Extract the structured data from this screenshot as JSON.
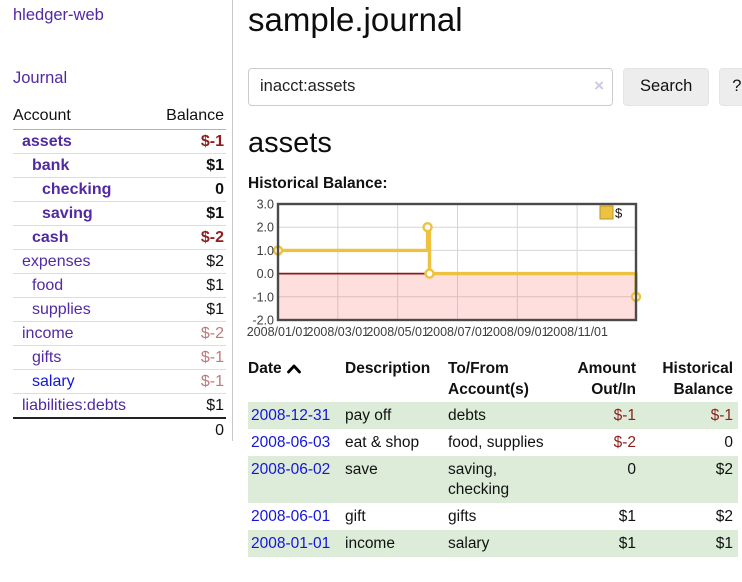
{
  "sidebar": {
    "brand": "hledger-web",
    "nav": {
      "journal": "Journal"
    },
    "accounts_table": {
      "headers": {
        "account": "Account",
        "balance": "Balance"
      },
      "rows": [
        {
          "name": "assets",
          "indent": 1,
          "bold": true,
          "link_style": "purple",
          "balance": "$-1",
          "balance_style": "neg-strong"
        },
        {
          "name": "bank",
          "indent": 2,
          "bold": true,
          "link_style": "purple",
          "balance": "$1",
          "balance_style": "plain"
        },
        {
          "name": "checking",
          "indent": 3,
          "bold": true,
          "link_style": "purple",
          "balance": "0",
          "balance_style": "plain"
        },
        {
          "name": "saving",
          "indent": 3,
          "bold": true,
          "link_style": "purple",
          "balance": "$1",
          "balance_style": "plain"
        },
        {
          "name": "cash",
          "indent": 2,
          "bold": true,
          "link_style": "purple",
          "balance": "$-2",
          "balance_style": "neg-strong"
        },
        {
          "name": "expenses",
          "indent": 1,
          "bold": false,
          "link_style": "purple",
          "balance": "$2",
          "balance_style": "plain"
        },
        {
          "name": "food",
          "indent": 2,
          "bold": false,
          "link_style": "purple",
          "balance": "$1",
          "balance_style": "plain"
        },
        {
          "name": "supplies",
          "indent": 2,
          "bold": false,
          "link_style": "purple",
          "balance": "$1",
          "balance_style": "plain"
        },
        {
          "name": "income",
          "indent": 1,
          "bold": false,
          "link_style": "purple",
          "balance": "$-2",
          "balance_style": "neg-soft"
        },
        {
          "name": "gifts",
          "indent": 2,
          "bold": false,
          "link_style": "purple",
          "balance": "$-1",
          "balance_style": "neg-soft"
        },
        {
          "name": "salary",
          "indent": 2,
          "bold": false,
          "link_style": "blue",
          "balance": "$-1",
          "balance_style": "neg-soft"
        },
        {
          "name": "liabilities:debts",
          "indent": 1,
          "bold": false,
          "link_style": "purple",
          "balance": "$1",
          "balance_style": "plain"
        }
      ],
      "total": "0"
    }
  },
  "main": {
    "title": "sample.journal",
    "search": {
      "value": "inacct:assets",
      "clear_icon": "×",
      "search_button": "Search",
      "help_button": "?"
    },
    "account_heading": "assets",
    "chart_label": "Historical Balance:",
    "register": {
      "headers": {
        "date": "Date",
        "description": "Description",
        "tofrom": "To/From\nAccount(s)",
        "amount": "Amount\nOut/In",
        "balance": "Historical\nBalance"
      },
      "rows": [
        {
          "date": "2008-12-31",
          "description": "pay off",
          "accounts": "debts",
          "amount": "$-1",
          "amount_negative": true,
          "balance": "$-1",
          "balance_negative": true
        },
        {
          "date": "2008-06-03",
          "description": "eat & shop",
          "accounts": "food, supplies",
          "amount": "$-2",
          "amount_negative": true,
          "balance": "0",
          "balance_negative": false
        },
        {
          "date": "2008-06-02",
          "description": "save",
          "accounts": "saving,\nchecking",
          "amount": "0",
          "amount_negative": false,
          "balance": "$2",
          "balance_negative": false
        },
        {
          "date": "2008-06-01",
          "description": "gift",
          "accounts": "gifts",
          "amount": "$1",
          "amount_negative": false,
          "balance": "$2",
          "balance_negative": false
        },
        {
          "date": "2008-01-01",
          "description": "income",
          "accounts": "salary",
          "amount": "$1",
          "amount_negative": false,
          "balance": "$1",
          "balance_negative": false
        }
      ]
    }
  },
  "chart_data": {
    "type": "line",
    "title": "Historical Balance:",
    "step": true,
    "series": [
      {
        "name": "$",
        "color": "#EDC240",
        "points": [
          [
            "2008-01-01",
            1
          ],
          [
            "2008-06-01",
            2
          ],
          [
            "2008-06-03",
            0
          ],
          [
            "2008-12-31",
            -1
          ]
        ]
      }
    ],
    "xrange": [
      "2008-01-01",
      "2008-12-31"
    ],
    "xticks": [
      "2008/01/01",
      "2008/03/01",
      "2008/05/01",
      "2008/07/01",
      "2008/09/01",
      "2008/11/01"
    ],
    "ylim": [
      -2,
      3
    ],
    "yticks": [
      3,
      2,
      1,
      0,
      -1,
      -2
    ],
    "legend_position": "top-right",
    "grid": true,
    "grid_color": "#d6d6d6",
    "border_color": "#4a4a4a",
    "zero_line_color": "#8b1a1a",
    "negative_region_fill": "rgba(255,90,90,0.20)",
    "tick_label_color": "#3d3d3d",
    "legend_square_border": "#b8962e"
  },
  "colors": {
    "link_purple": "#5229a3",
    "link_blue": "#1414dc",
    "negative_strong": "#8f1d1d",
    "negative_soft": "#c17878",
    "row_stripe_green": "#dcecd8",
    "chart_series_gold": "#EDC240",
    "button_gray": "#ededed"
  }
}
